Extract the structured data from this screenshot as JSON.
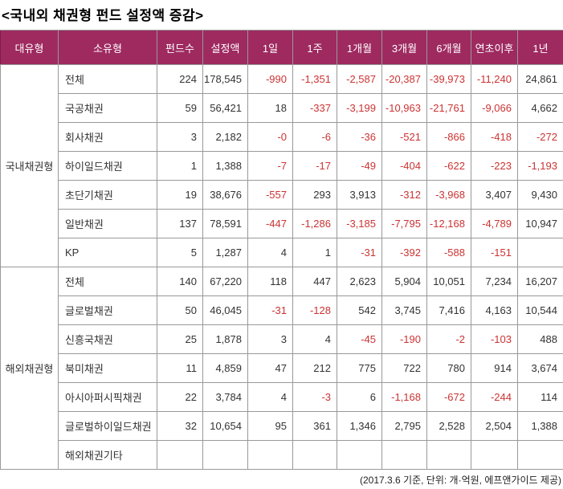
{
  "title": "<국내외 채권형 펀드 설정액 증감>",
  "footer": "(2017.3.6 기준, 단위: 개·억원, 에프앤가이드 제공)",
  "colors": {
    "header_bg": "#9E2A60",
    "header_text": "#FFFFFF",
    "negative_text": "#CC3333",
    "positive_text": "#333333",
    "grid_line": "#999999"
  },
  "table": {
    "columns": [
      "대유형",
      "소유형",
      "펀드수",
      "설정액",
      "1일",
      "1주",
      "1개월",
      "3개월",
      "6개월",
      "연초이후",
      "1년"
    ],
    "groups": [
      {
        "label": "국내채권형",
        "rows": [
          {
            "label": "전체",
            "values": [
              "224",
              "178,545",
              "-990",
              "-1,351",
              "-2,587",
              "-20,387",
              "-39,973",
              "-11,240",
              "24,861"
            ]
          },
          {
            "label": "국공채권",
            "values": [
              "59",
              "56,421",
              "18",
              "-337",
              "-3,199",
              "-10,963",
              "-21,761",
              "-9,066",
              "4,662"
            ]
          },
          {
            "label": "회사채권",
            "values": [
              "3",
              "2,182",
              "-0",
              "-6",
              "-36",
              "-521",
              "-866",
              "-418",
              "-272"
            ]
          },
          {
            "label": "하이일드채권",
            "values": [
              "1",
              "1,388",
              "-7",
              "-17",
              "-49",
              "-404",
              "-622",
              "-223",
              "-1,193"
            ]
          },
          {
            "label": "초단기채권",
            "values": [
              "19",
              "38,676",
              "-557",
              "293",
              "3,913",
              "-312",
              "-3,968",
              "3,407",
              "9,430"
            ]
          },
          {
            "label": "일반채권",
            "values": [
              "137",
              "78,591",
              "-447",
              "-1,286",
              "-3,185",
              "-7,795",
              "-12,168",
              "-4,789",
              "10,947"
            ]
          },
          {
            "label": "KP",
            "values": [
              "5",
              "1,287",
              "4",
              "1",
              "-31",
              "-392",
              "-588",
              "-151",
              ""
            ]
          }
        ]
      },
      {
        "label": "해외채권형",
        "rows": [
          {
            "label": "전체",
            "values": [
              "140",
              "67,220",
              "118",
              "447",
              "2,623",
              "5,904",
              "10,051",
              "7,234",
              "16,207"
            ]
          },
          {
            "label": "글로벌채권",
            "values": [
              "50",
              "46,045",
              "-31",
              "-128",
              "542",
              "3,745",
              "7,416",
              "4,163",
              "10,544"
            ]
          },
          {
            "label": "신흥국채권",
            "values": [
              "25",
              "1,878",
              "3",
              "4",
              "-45",
              "-190",
              "-2",
              "-103",
              "488"
            ]
          },
          {
            "label": "북미채권",
            "values": [
              "11",
              "4,859",
              "47",
              "212",
              "775",
              "722",
              "780",
              "914",
              "3,674"
            ]
          },
          {
            "label": "아시아퍼시픽채권",
            "values": [
              "22",
              "3,784",
              "4",
              "-3",
              "6",
              "-1,168",
              "-672",
              "-244",
              "114"
            ]
          },
          {
            "label": "글로벌하이일드채권",
            "values": [
              "32",
              "10,654",
              "95",
              "361",
              "1,346",
              "2,795",
              "2,528",
              "2,504",
              "1,388"
            ]
          },
          {
            "label": "해외채권기타",
            "values": [
              "",
              "",
              "",
              "",
              "",
              "",
              "",
              "",
              ""
            ]
          }
        ]
      }
    ]
  }
}
